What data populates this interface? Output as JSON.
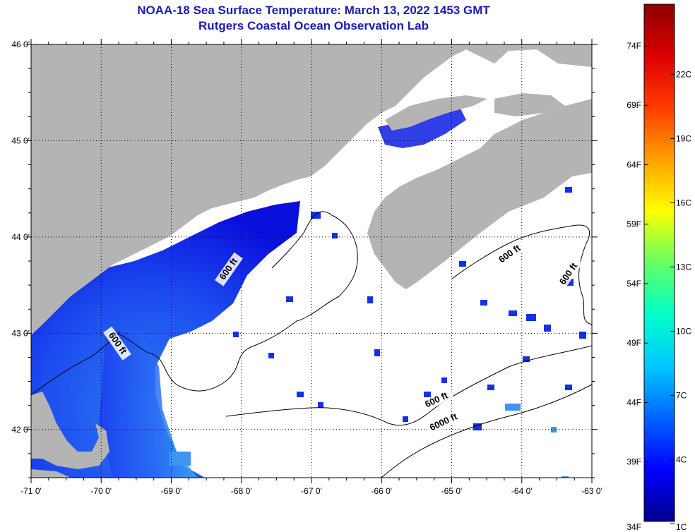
{
  "title": "NOAA-18 Sea Surface Temperature:  March 13, 2022 1453 GMT",
  "subtitle": "Rutgers Coastal Ocean Observation Lab",
  "map": {
    "lon_range": [
      -71,
      -63
    ],
    "lat_range": [
      41.5,
      46
    ],
    "lon_ticks": [
      {
        "value": -71,
        "label": "-71 0'"
      },
      {
        "value": -70,
        "label": "-70 0'"
      },
      {
        "value": -69,
        "label": "-69 0'"
      },
      {
        "value": -68,
        "label": "-68 0'"
      },
      {
        "value": -67,
        "label": "-67 0'"
      },
      {
        "value": -66,
        "label": "-66 0'"
      },
      {
        "value": -65,
        "label": "-65 0'"
      },
      {
        "value": -64,
        "label": "-64 0'"
      },
      {
        "value": -63,
        "label": "-63 0'"
      }
    ],
    "lat_ticks": [
      {
        "value": 46,
        "label": "46 0'"
      },
      {
        "value": 45,
        "label": "45 0'"
      },
      {
        "value": 44,
        "label": "44 0'"
      },
      {
        "value": 43,
        "label": "43 0'"
      },
      {
        "value": 42,
        "label": "42 0'"
      }
    ],
    "grid": true,
    "colors": {
      "land": "#b4b4b4",
      "ocean_no_data": "#ffffff",
      "contour": "#000000",
      "grid": "#000000"
    },
    "contour_labels": [
      {
        "text": "600 ft",
        "lon": -68.15,
        "lat": 43.65,
        "angle": -55
      },
      {
        "text": "600 ft",
        "lon": -69.8,
        "lat": 42.88,
        "angle": 55
      },
      {
        "text": "600 ft",
        "lon": -64.15,
        "lat": 43.8,
        "angle": -35
      },
      {
        "text": "600 ft",
        "lon": -63.3,
        "lat": 43.6,
        "angle": -55
      },
      {
        "text": "600 ft",
        "lon": -65.2,
        "lat": 42.28,
        "angle": -25
      },
      {
        "text": "6000 ft",
        "lon": -65.1,
        "lat": 42.05,
        "angle": -25
      }
    ]
  },
  "colorbar": {
    "colors": [
      "#00008c",
      "#0000ff",
      "#0064ff",
      "#00c8ff",
      "#00ffc8",
      "#64ff64",
      "#ffff00",
      "#ffa000",
      "#ff3c00",
      "#dc0000",
      "#8c0000"
    ],
    "fahrenheit_ticks": [
      {
        "value": 34,
        "label": "34F"
      },
      {
        "value": 39,
        "label": "39F"
      },
      {
        "value": 44,
        "label": "44F"
      },
      {
        "value": 49,
        "label": "49F"
      },
      {
        "value": 54,
        "label": "54F"
      },
      {
        "value": 59,
        "label": "59F"
      },
      {
        "value": 64,
        "label": "64F"
      },
      {
        "value": 69,
        "label": "69F"
      },
      {
        "value": 74,
        "label": "74F"
      }
    ],
    "celsius_ticks": [
      {
        "value": 1,
        "label": "1C"
      },
      {
        "value": 4,
        "label": "4C"
      },
      {
        "value": 7,
        "label": "7C"
      },
      {
        "value": 10,
        "label": "10C"
      },
      {
        "value": 13,
        "label": "13C"
      },
      {
        "value": 16,
        "label": "16C"
      },
      {
        "value": 19,
        "label": "19C"
      },
      {
        "value": 22,
        "label": "22C"
      }
    ]
  }
}
